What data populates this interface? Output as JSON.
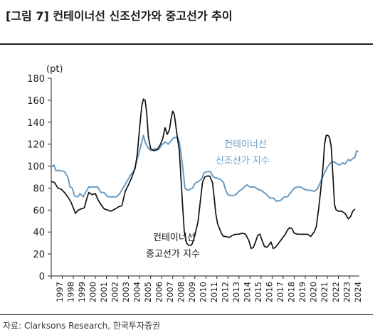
{
  "figure": {
    "title": "[그림 7] 컨테이너선 신조선가와 중고선가 추이",
    "source": "자료: Clarksons Research, 한국투자증권"
  },
  "chart_data": {
    "type": "line",
    "ylabel": "(pt)",
    "ylim": [
      0,
      180
    ],
    "yticks": [
      0,
      20,
      40,
      60,
      80,
      100,
      120,
      140,
      160,
      180
    ],
    "xlim": [
      1997,
      2024.9
    ],
    "xticks": [
      "1997",
      "1998",
      "1999",
      "2000",
      "2001",
      "2002",
      "2003",
      "2004",
      "2005",
      "2006",
      "2007",
      "2008",
      "2009",
      "2010",
      "2011",
      "2012",
      "2013",
      "2014",
      "2015",
      "2016",
      "2017",
      "2018",
      "2019",
      "2020",
      "2021",
      "2022",
      "2023",
      "2024"
    ],
    "grid": false,
    "annotations": [
      {
        "text": "컨테이너선\n신조선가 지수",
        "series": 0
      },
      {
        "text": "컨테이너선\n중고선가 지수",
        "series": 1
      }
    ],
    "series": [
      {
        "name": "컨테이너선 신조선가 지수",
        "color": "#6a9cc4",
        "points": [
          [
            1997.0,
            99
          ],
          [
            1997.25,
            101
          ],
          [
            1997.4,
            96
          ],
          [
            1997.8,
            96
          ],
          [
            1998.2,
            95
          ],
          [
            1998.5,
            90
          ],
          [
            1998.7,
            81
          ],
          [
            1998.9,
            80
          ],
          [
            1999.1,
            73
          ],
          [
            1999.4,
            72
          ],
          [
            1999.6,
            75
          ],
          [
            1999.9,
            72
          ],
          [
            2000.1,
            76
          ],
          [
            2000.4,
            81
          ],
          [
            2000.8,
            81
          ],
          [
            2001.2,
            81
          ],
          [
            2001.5,
            76
          ],
          [
            2001.8,
            76
          ],
          [
            2002.1,
            72
          ],
          [
            2002.5,
            72
          ],
          [
            2002.9,
            72
          ],
          [
            2003.2,
            75
          ],
          [
            2003.5,
            80
          ],
          [
            2003.9,
            87
          ],
          [
            2004.2,
            92
          ],
          [
            2004.5,
            96
          ],
          [
            2004.8,
            107
          ],
          [
            2005.1,
            118
          ],
          [
            2005.35,
            128
          ],
          [
            2005.5,
            122
          ],
          [
            2005.7,
            118
          ],
          [
            2005.9,
            115
          ],
          [
            2006.1,
            114
          ],
          [
            2006.4,
            116
          ],
          [
            2006.7,
            115
          ],
          [
            2007.0,
            119
          ],
          [
            2007.3,
            122
          ],
          [
            2007.6,
            120
          ],
          [
            2007.85,
            123
          ],
          [
            2008.1,
            126
          ],
          [
            2008.45,
            126
          ],
          [
            2008.6,
            122
          ],
          [
            2008.8,
            108
          ],
          [
            2008.95,
            95
          ],
          [
            2009.1,
            80
          ],
          [
            2009.35,
            78
          ],
          [
            2009.6,
            79
          ],
          [
            2009.8,
            80
          ],
          [
            2010.0,
            84
          ],
          [
            2010.3,
            86
          ],
          [
            2010.6,
            88
          ],
          [
            2010.85,
            94
          ],
          [
            2011.1,
            95
          ],
          [
            2011.4,
            95
          ],
          [
            2011.7,
            90
          ],
          [
            2012.0,
            89
          ],
          [
            2012.3,
            88
          ],
          [
            2012.6,
            85
          ],
          [
            2012.8,
            78
          ],
          [
            2013.0,
            74
          ],
          [
            2013.4,
            73
          ],
          [
            2013.7,
            74
          ],
          [
            2014.0,
            77
          ],
          [
            2014.4,
            80
          ],
          [
            2014.7,
            83
          ],
          [
            2015.0,
            81
          ],
          [
            2015.4,
            81
          ],
          [
            2015.7,
            79
          ],
          [
            2016.0,
            78
          ],
          [
            2016.4,
            75
          ],
          [
            2016.8,
            71
          ],
          [
            2017.1,
            71
          ],
          [
            2017.4,
            68
          ],
          [
            2017.8,
            69
          ],
          [
            2018.1,
            72
          ],
          [
            2018.4,
            72
          ],
          [
            2018.7,
            76
          ],
          [
            2019.0,
            80
          ],
          [
            2019.3,
            81
          ],
          [
            2019.6,
            81
          ],
          [
            2019.9,
            79
          ],
          [
            2020.2,
            78
          ],
          [
            2020.5,
            78
          ],
          [
            2020.8,
            77
          ],
          [
            2021.1,
            79
          ],
          [
            2021.4,
            86
          ],
          [
            2021.7,
            93
          ],
          [
            2022.0,
            99
          ],
          [
            2022.3,
            103
          ],
          [
            2022.6,
            104
          ],
          [
            2022.9,
            102
          ],
          [
            2023.1,
            101
          ],
          [
            2023.4,
            103
          ],
          [
            2023.6,
            102
          ],
          [
            2023.9,
            106
          ],
          [
            2024.1,
            105
          ],
          [
            2024.3,
            107
          ],
          [
            2024.5,
            108
          ],
          [
            2024.65,
            114
          ],
          [
            2024.8,
            113
          ]
        ]
      },
      {
        "name": "컨테이너선 중고선가 지수",
        "color": "#111111",
        "points": [
          [
            1997.0,
            86
          ],
          [
            1997.3,
            85
          ],
          [
            1997.6,
            80
          ],
          [
            1997.9,
            79
          ],
          [
            1998.2,
            76
          ],
          [
            1998.5,
            72
          ],
          [
            1998.8,
            67
          ],
          [
            1999.0,
            62
          ],
          [
            1999.2,
            57
          ],
          [
            1999.45,
            60
          ],
          [
            1999.7,
            61
          ],
          [
            2000.0,
            62
          ],
          [
            2000.2,
            70
          ],
          [
            2000.4,
            76
          ],
          [
            2000.7,
            74
          ],
          [
            2001.0,
            75
          ],
          [
            2001.2,
            70
          ],
          [
            2001.5,
            65
          ],
          [
            2001.8,
            61
          ],
          [
            2002.1,
            60
          ],
          [
            2002.4,
            59
          ],
          [
            2002.8,
            61
          ],
          [
            2003.1,
            63
          ],
          [
            2003.4,
            64
          ],
          [
            2003.7,
            77
          ],
          [
            2004.0,
            83
          ],
          [
            2004.3,
            90
          ],
          [
            2004.6,
            98
          ],
          [
            2004.8,
            112
          ],
          [
            2005.0,
            135
          ],
          [
            2005.2,
            155
          ],
          [
            2005.35,
            161
          ],
          [
            2005.5,
            160
          ],
          [
            2005.65,
            148
          ],
          [
            2005.8,
            126
          ],
          [
            2006.0,
            116
          ],
          [
            2006.3,
            114
          ],
          [
            2006.6,
            115
          ],
          [
            2006.9,
            120
          ],
          [
            2007.1,
            125
          ],
          [
            2007.3,
            135
          ],
          [
            2007.5,
            129
          ],
          [
            2007.7,
            133
          ],
          [
            2007.85,
            143
          ],
          [
            2008.0,
            150
          ],
          [
            2008.15,
            147
          ],
          [
            2008.3,
            135
          ],
          [
            2008.45,
            124
          ],
          [
            2008.6,
            114
          ],
          [
            2008.75,
            88
          ],
          [
            2008.9,
            63
          ],
          [
            2009.05,
            40
          ],
          [
            2009.25,
            30
          ],
          [
            2009.45,
            28
          ],
          [
            2009.7,
            28
          ],
          [
            2009.9,
            33
          ],
          [
            2010.1,
            41
          ],
          [
            2010.3,
            50
          ],
          [
            2010.5,
            68
          ],
          [
            2010.7,
            85
          ],
          [
            2010.9,
            90
          ],
          [
            2011.1,
            91
          ],
          [
            2011.35,
            91
          ],
          [
            2011.6,
            85
          ],
          [
            2011.75,
            72
          ],
          [
            2011.9,
            57
          ],
          [
            2012.05,
            48
          ],
          [
            2012.2,
            44
          ],
          [
            2012.4,
            39
          ],
          [
            2012.6,
            36
          ],
          [
            2012.8,
            36
          ],
          [
            2013.1,
            35
          ],
          [
            2013.4,
            37
          ],
          [
            2013.7,
            38
          ],
          [
            2014.0,
            38
          ],
          [
            2014.3,
            39
          ],
          [
            2014.6,
            38
          ],
          [
            2014.9,
            32
          ],
          [
            2015.1,
            25
          ],
          [
            2015.3,
            26
          ],
          [
            2015.5,
            31
          ],
          [
            2015.7,
            37
          ],
          [
            2015.9,
            38
          ],
          [
            2016.1,
            32
          ],
          [
            2016.3,
            27
          ],
          [
            2016.5,
            26
          ],
          [
            2016.7,
            28
          ],
          [
            2016.9,
            31
          ],
          [
            2017.1,
            25
          ],
          [
            2017.3,
            26
          ],
          [
            2017.6,
            30
          ],
          [
            2017.9,
            34
          ],
          [
            2018.2,
            38
          ],
          [
            2018.4,
            42
          ],
          [
            2018.6,
            44
          ],
          [
            2018.8,
            43
          ],
          [
            2019.0,
            39
          ],
          [
            2019.3,
            38
          ],
          [
            2019.6,
            38
          ],
          [
            2019.9,
            38
          ],
          [
            2020.2,
            38
          ],
          [
            2020.5,
            36
          ],
          [
            2020.8,
            40
          ],
          [
            2021.0,
            45
          ],
          [
            2021.2,
            60
          ],
          [
            2021.4,
            78
          ],
          [
            2021.6,
            98
          ],
          [
            2021.75,
            120
          ],
          [
            2021.9,
            128
          ],
          [
            2022.05,
            128
          ],
          [
            2022.2,
            126
          ],
          [
            2022.35,
            118
          ],
          [
            2022.5,
            92
          ],
          [
            2022.65,
            65
          ],
          [
            2022.8,
            60
          ],
          [
            2023.0,
            59
          ],
          [
            2023.3,
            59
          ],
          [
            2023.6,
            57
          ],
          [
            2023.9,
            52
          ],
          [
            2024.1,
            54
          ],
          [
            2024.3,
            59
          ],
          [
            2024.5,
            61
          ]
        ]
      }
    ]
  }
}
